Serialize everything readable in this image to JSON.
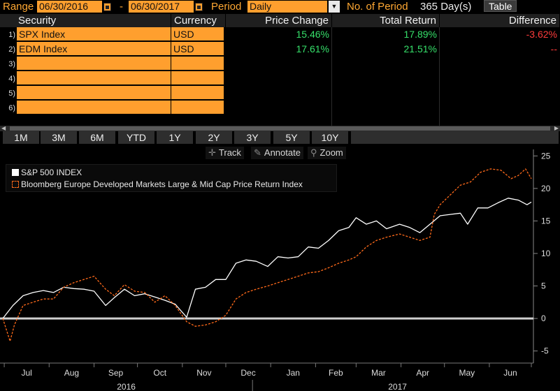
{
  "toolbar": {
    "range_label": "Range",
    "start_date": "06/30/2016",
    "dash": "-",
    "end_date": "06/30/2017",
    "period_label": "Period",
    "period_value": "Daily",
    "periods_label": "No. of Period",
    "periods_value": "365 Day(s)",
    "table_button": "Table"
  },
  "grid": {
    "headers": {
      "security": "Security",
      "currency": "Currency",
      "price_change": "Price Change",
      "total_return": "Total Return",
      "difference": "Difference"
    },
    "rows": [
      {
        "num": "1)",
        "security": "SPX Index",
        "currency": "USD",
        "price_change": "15.46%",
        "total_return": "17.89%",
        "difference": "-3.62%"
      },
      {
        "num": "2)",
        "security": "EDM Index",
        "currency": "USD",
        "price_change": "17.61%",
        "total_return": "21.51%",
        "difference": "--"
      },
      {
        "num": "3)",
        "security": "",
        "currency": "",
        "price_change": "",
        "total_return": "",
        "difference": ""
      },
      {
        "num": "4)",
        "security": "",
        "currency": "",
        "price_change": "",
        "total_return": "",
        "difference": ""
      },
      {
        "num": "5)",
        "security": "",
        "currency": "",
        "price_change": "",
        "total_return": "",
        "difference": ""
      },
      {
        "num": "6)",
        "security": "",
        "currency": "",
        "price_change": "",
        "total_return": "",
        "difference": ""
      }
    ]
  },
  "range_buttons": [
    "1M",
    "3M",
    "6M",
    "YTD",
    "1Y",
    "2Y",
    "3Y",
    "5Y",
    "10Y"
  ],
  "chart_tools": {
    "track": "Track",
    "annotate": "Annotate",
    "zoom": "Zoom"
  },
  "icons": {
    "track": "crosshair-icon",
    "annotate": "pencil-icon",
    "zoom": "magnifier-icon",
    "calendar": "calendar-icon",
    "dropdown": "dropdown-arrow-icon"
  },
  "colors": {
    "field_orange": "#ff9f2e",
    "label_orange": "#ffa833",
    "positive": "#36e06a",
    "negative": "#ff3b3b",
    "spx_line": "#ffffff",
    "edm_line": "#ff6a1a"
  },
  "chart_data": {
    "type": "line",
    "title": "",
    "xlabel": "",
    "ylabel": "",
    "ylim": [
      -6,
      26
    ],
    "y_ticks": [
      -5,
      0,
      5,
      10,
      15,
      20,
      25
    ],
    "x_ticks": [
      "Jul",
      "Aug",
      "Sep",
      "Oct",
      "Nov",
      "Dec",
      "Jan",
      "Feb",
      "Mar",
      "Apr",
      "May",
      "Jun"
    ],
    "year_labels": [
      "2016",
      "2017"
    ],
    "legend_placement": "top-left",
    "grid": false,
    "x_domain": [
      "2016-06-30",
      "2017-06-30"
    ],
    "series": [
      {
        "name": "S&P 500 INDEX",
        "style": "solid",
        "points": [
          [
            "2016-06-30",
            0
          ],
          [
            "2016-07-07",
            2
          ],
          [
            "2016-07-14",
            3.5
          ],
          [
            "2016-07-21",
            4
          ],
          [
            "2016-07-28",
            4.3
          ],
          [
            "2016-08-04",
            4
          ],
          [
            "2016-08-11",
            4.8
          ],
          [
            "2016-08-18",
            4.6
          ],
          [
            "2016-08-25",
            4.5
          ],
          [
            "2016-09-01",
            4.2
          ],
          [
            "2016-09-09",
            2
          ],
          [
            "2016-09-15",
            3.2
          ],
          [
            "2016-09-22",
            4.5
          ],
          [
            "2016-09-29",
            3.5
          ],
          [
            "2016-10-06",
            3.8
          ],
          [
            "2016-10-13",
            3.3
          ],
          [
            "2016-10-20",
            2.8
          ],
          [
            "2016-10-27",
            2.2
          ],
          [
            "2016-11-04",
            0.2
          ],
          [
            "2016-11-10",
            4.5
          ],
          [
            "2016-11-17",
            4.8
          ],
          [
            "2016-11-24",
            6
          ],
          [
            "2016-12-01",
            6
          ],
          [
            "2016-12-08",
            8.5
          ],
          [
            "2016-12-15",
            9
          ],
          [
            "2016-12-22",
            8.8
          ],
          [
            "2016-12-30",
            8
          ],
          [
            "2017-01-06",
            9.5
          ],
          [
            "2017-01-13",
            9.3
          ],
          [
            "2017-01-20",
            9.5
          ],
          [
            "2017-01-27",
            11
          ],
          [
            "2017-02-03",
            10.8
          ],
          [
            "2017-02-10",
            12
          ],
          [
            "2017-02-17",
            13.5
          ],
          [
            "2017-02-24",
            14
          ],
          [
            "2017-03-01",
            15.5
          ],
          [
            "2017-03-08",
            14.5
          ],
          [
            "2017-03-15",
            15
          ],
          [
            "2017-03-22",
            13.8
          ],
          [
            "2017-03-31",
            14.5
          ],
          [
            "2017-04-07",
            14
          ],
          [
            "2017-04-14",
            13.2
          ],
          [
            "2017-04-21",
            14.5
          ],
          [
            "2017-04-28",
            15.8
          ],
          [
            "2017-05-05",
            16
          ],
          [
            "2017-05-12",
            16.2
          ],
          [
            "2017-05-17",
            14.5
          ],
          [
            "2017-05-24",
            17
          ],
          [
            "2017-05-31",
            17
          ],
          [
            "2017-06-07",
            17.8
          ],
          [
            "2017-06-14",
            18.5
          ],
          [
            "2017-06-21",
            18.2
          ],
          [
            "2017-06-27",
            17.5
          ],
          [
            "2017-06-30",
            17.9
          ]
        ]
      },
      {
        "name": "Bloomberg Europe Developed Markets Large & Mid Cap Price Return Index",
        "style": "dashed",
        "points": [
          [
            "2016-06-30",
            0
          ],
          [
            "2016-07-05",
            -3.5
          ],
          [
            "2016-07-08",
            -1
          ],
          [
            "2016-07-14",
            2
          ],
          [
            "2016-07-21",
            2.5
          ],
          [
            "2016-07-28",
            3
          ],
          [
            "2016-08-04",
            3
          ],
          [
            "2016-08-11",
            4.8
          ],
          [
            "2016-08-18",
            5.5
          ],
          [
            "2016-08-25",
            6
          ],
          [
            "2016-09-01",
            6.5
          ],
          [
            "2016-09-09",
            4.5
          ],
          [
            "2016-09-15",
            3.5
          ],
          [
            "2016-09-22",
            5.2
          ],
          [
            "2016-09-29",
            4.2
          ],
          [
            "2016-10-06",
            4
          ],
          [
            "2016-10-13",
            2.5
          ],
          [
            "2016-10-20",
            3.5
          ],
          [
            "2016-10-27",
            2
          ],
          [
            "2016-11-04",
            -0.5
          ],
          [
            "2016-11-10",
            -1.2
          ],
          [
            "2016-11-17",
            -1
          ],
          [
            "2016-11-24",
            -0.5
          ],
          [
            "2016-12-01",
            0.5
          ],
          [
            "2016-12-08",
            3
          ],
          [
            "2016-12-15",
            4
          ],
          [
            "2016-12-22",
            4.5
          ],
          [
            "2016-12-30",
            5
          ],
          [
            "2017-01-06",
            5.5
          ],
          [
            "2017-01-13",
            6
          ],
          [
            "2017-01-20",
            6.5
          ],
          [
            "2017-01-27",
            7
          ],
          [
            "2017-02-03",
            7.2
          ],
          [
            "2017-02-10",
            7.8
          ],
          [
            "2017-02-17",
            8.5
          ],
          [
            "2017-02-24",
            9
          ],
          [
            "2017-03-01",
            9.5
          ],
          [
            "2017-03-08",
            11
          ],
          [
            "2017-03-15",
            12
          ],
          [
            "2017-03-22",
            12.5
          ],
          [
            "2017-03-31",
            13
          ],
          [
            "2017-04-07",
            12.5
          ],
          [
            "2017-04-14",
            12
          ],
          [
            "2017-04-21",
            12.5
          ],
          [
            "2017-04-24",
            16
          ],
          [
            "2017-04-28",
            17.5
          ],
          [
            "2017-05-05",
            19
          ],
          [
            "2017-05-12",
            20.5
          ],
          [
            "2017-05-19",
            21
          ],
          [
            "2017-05-26",
            22.5
          ],
          [
            "2017-06-02",
            23
          ],
          [
            "2017-06-09",
            22.8
          ],
          [
            "2017-06-16",
            21.5
          ],
          [
            "2017-06-21",
            22
          ],
          [
            "2017-06-26",
            23
          ],
          [
            "2017-06-30",
            21.5
          ]
        ]
      }
    ]
  }
}
